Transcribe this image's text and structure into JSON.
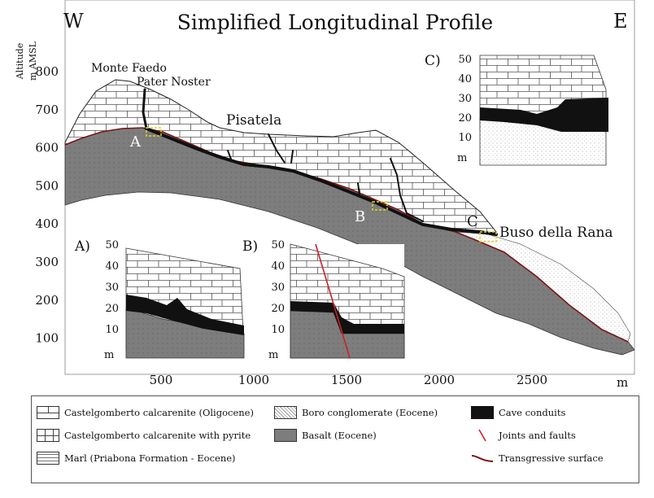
{
  "title": "Simplified Longitudinal Profile",
  "direction": {
    "west": "W",
    "east": "E"
  },
  "y_axis": {
    "label_line1": "Altitude",
    "label_line2": "m AMSL",
    "ticks": [
      "800",
      "700",
      "600",
      "500",
      "400",
      "300",
      "200",
      "100"
    ]
  },
  "x_axis": {
    "ticks": [
      "500",
      "1000",
      "1500",
      "2000",
      "2500"
    ],
    "unit": "m"
  },
  "places": {
    "monte_faedo": "Monte Faedo",
    "pater_noster": "Pater Noster",
    "pisatela": "Pisatela",
    "buso_della_rana": "Buso della Rana"
  },
  "markers": {
    "a": "A",
    "b": "B",
    "c": "C"
  },
  "insets": {
    "a": {
      "label": "A)",
      "ticks": [
        "50",
        "40",
        "30",
        "20",
        "10"
      ],
      "unit": "m"
    },
    "b": {
      "label": "B)",
      "ticks": [
        "50",
        "40",
        "30",
        "20",
        "10"
      ],
      "unit": "m"
    },
    "c": {
      "label": "C)",
      "ticks": [
        "50",
        "40",
        "30",
        "20",
        "10"
      ],
      "unit": "m"
    }
  },
  "legend": {
    "calcarenite": "Castelgomberto calcarenite (Oligocene)",
    "calcarenite_pyrite": "Castelgomberto calcarenite with pyrite",
    "marl": "Marl (Priabona Formation - Eocene)",
    "boro": "Boro conglomerate (Eocene)",
    "basalt": "Basalt (Eocene)",
    "cave": "Cave conduits",
    "joints": "Joints and faults",
    "transgressive": "Transgressive surface"
  },
  "colors": {
    "basalt": "#7d7d7d",
    "cave": "#111111",
    "transgressive": "#7a1418",
    "joints": "#cc1f2a",
    "marker_box": "#e6d21e"
  }
}
